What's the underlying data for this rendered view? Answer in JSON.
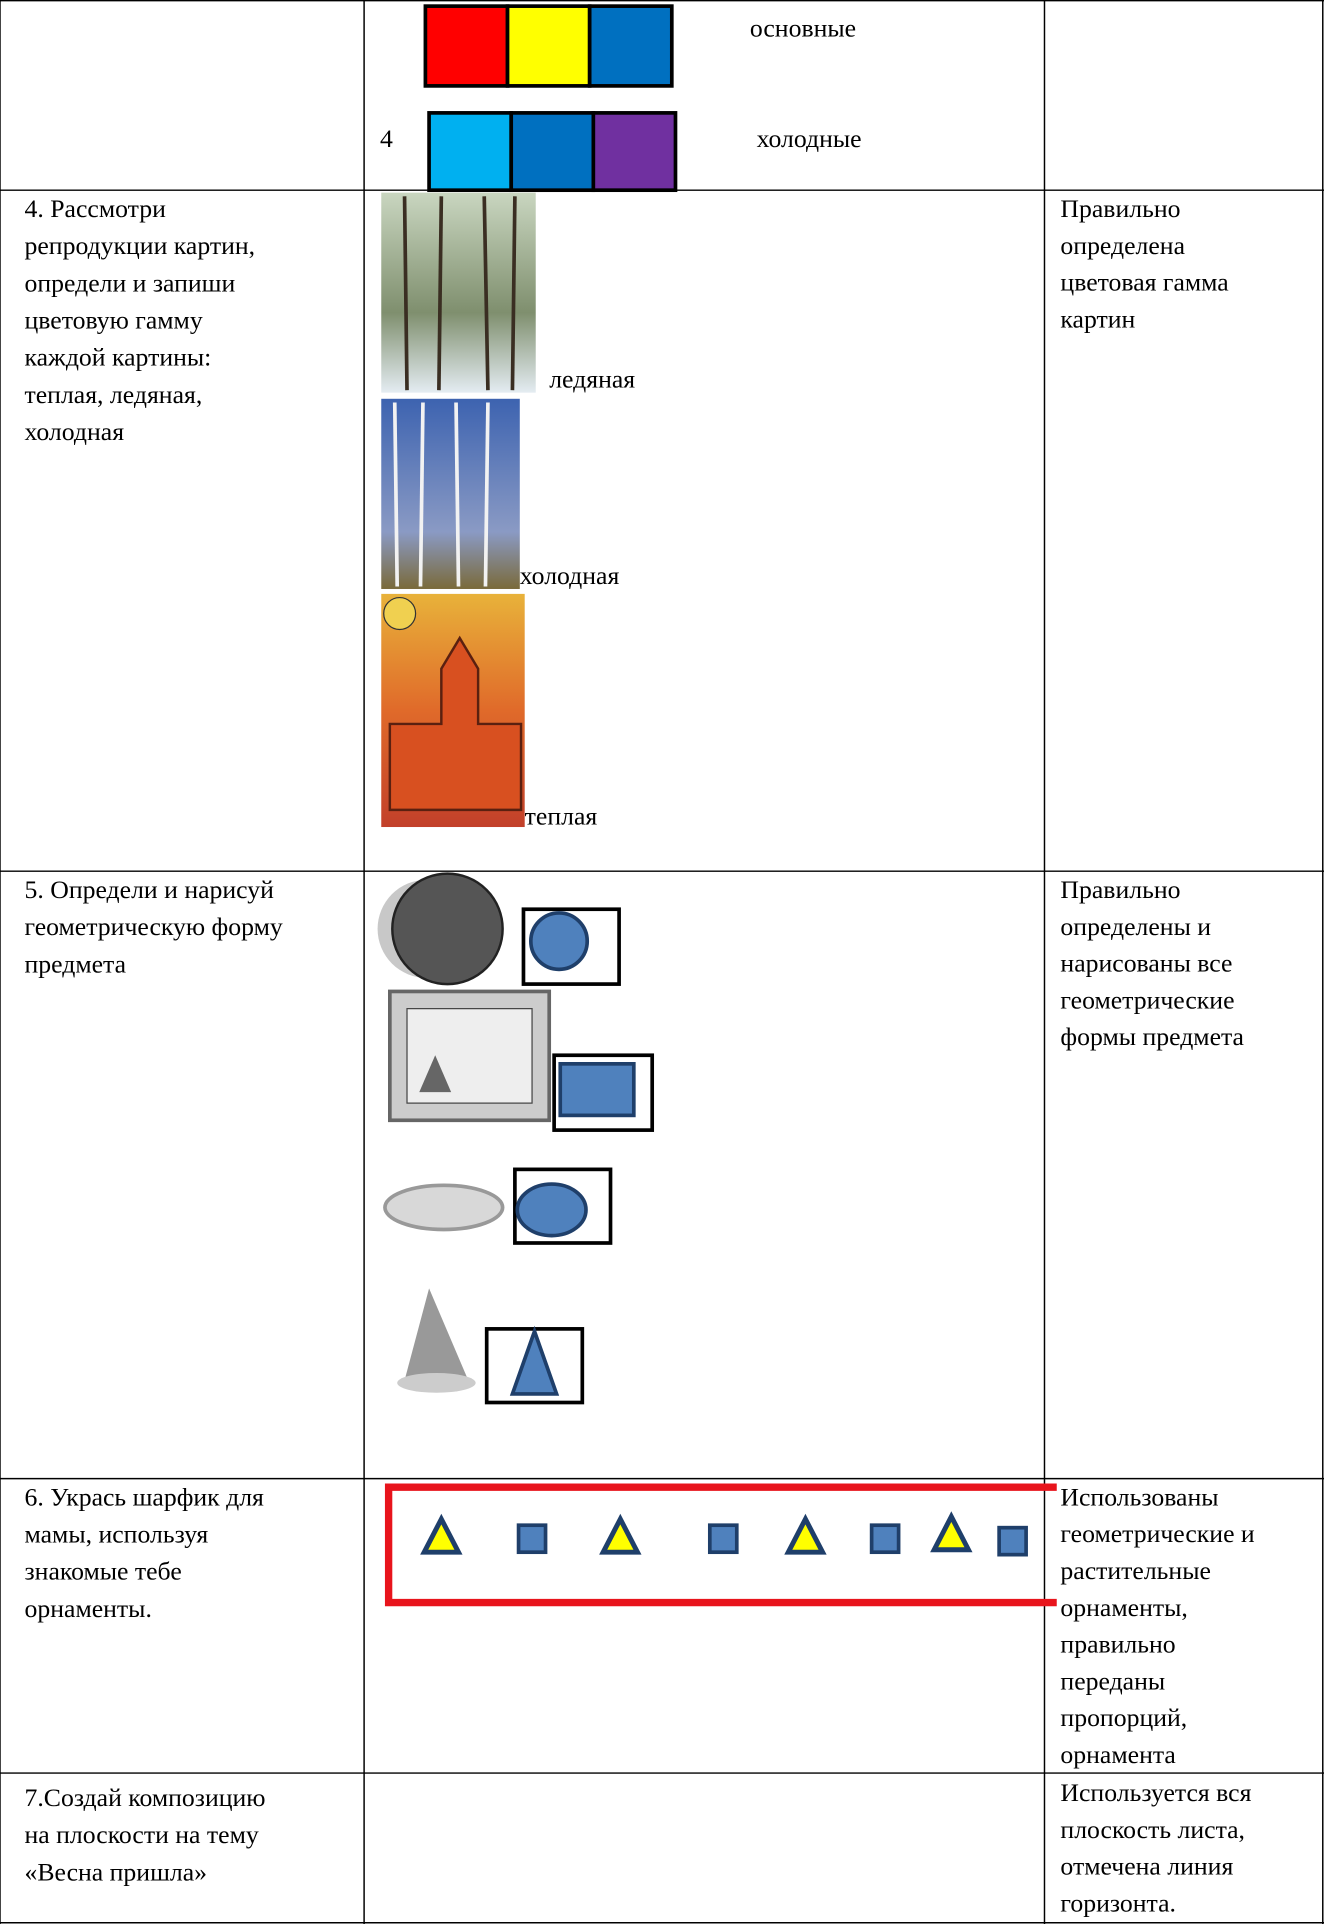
{
  "table": {
    "rows": [
      {
        "content": {
          "labels": [
            "основные",
            "холодные"
          ],
          "number": "4"
        }
      },
      {
        "task": [
          "4. Рассмотри",
          "репродукции картин,",
          "определи и  запиши",
          "цветовую гамму",
          "каждой  картины:",
          "теплая, ледяная,",
          "холодная"
        ],
        "content": {
          "labels": [
            "ледяная",
            "холодная",
            "теплая"
          ]
        },
        "criteria": [
          "Правильно",
          "определена",
          "цветовая  гамма",
          "картин"
        ]
      },
      {
        "task": [
          "5. Определи  и нарисуй",
          "геометрическую форму",
          "предмета"
        ],
        "criteria": [
          "Правильно",
          "определены   и",
          "нарисованы все",
          "геометрические",
          "формы предмета"
        ]
      },
      {
        "task": [
          "6. Укрась шарфик  для",
          "мамы,  используя",
          "знакомые тебе",
          "орнаменты."
        ],
        "criteria": [
          "Использованы",
          "геометрические и",
          "растительные",
          "орнаменты,",
          "правильно",
          "переданы",
          "пропорций,",
          "орнамента"
        ]
      },
      {
        "task": [
          "7.Создай композицию",
          "на плоскости на тему",
          "«Весна пришла»"
        ],
        "criteria": [
          "Используется вся",
          "плоскость листа,",
          "отмечена линия",
          "горизонта."
        ]
      }
    ]
  }
}
